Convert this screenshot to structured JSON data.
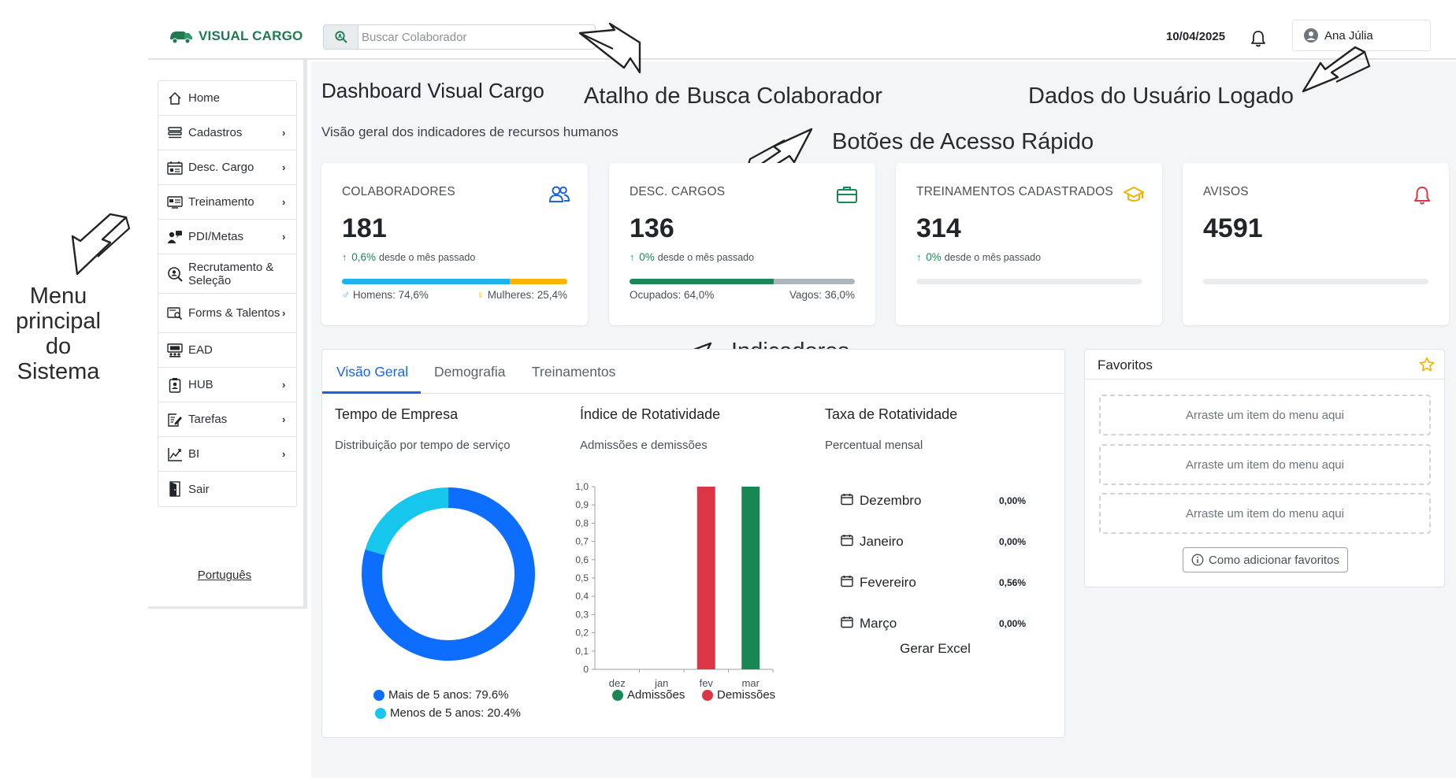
{
  "header": {
    "brand": "VISUAL CARGO",
    "search_placeholder": "Buscar Colaborador",
    "date": "10/04/2025",
    "user_name": "Ana Júlia"
  },
  "sidebar": {
    "items": [
      {
        "label": "Home",
        "icon": "home-icon",
        "has_submenu": false
      },
      {
        "label": "Cadastros",
        "icon": "list-icon",
        "has_submenu": true
      },
      {
        "label": "Desc. Cargo",
        "icon": "calendar-board-icon",
        "has_submenu": true
      },
      {
        "label": "Treinamento",
        "icon": "presentation-icon",
        "has_submenu": true
      },
      {
        "label": "PDI/Metas",
        "icon": "user-chat-icon",
        "has_submenu": true
      },
      {
        "label": "Recrutamento & Seleção",
        "icon": "user-search-icon",
        "has_submenu": false
      },
      {
        "label": "Forms & Talentos",
        "icon": "form-search-icon",
        "has_submenu": true
      },
      {
        "label": "EAD",
        "icon": "classroom-icon",
        "has_submenu": false
      },
      {
        "label": "HUB",
        "icon": "badge-icon",
        "has_submenu": true
      },
      {
        "label": "Tarefas",
        "icon": "task-edit-icon",
        "has_submenu": true
      },
      {
        "label": "BI",
        "icon": "chart-line-icon",
        "has_submenu": true
      },
      {
        "label": "Sair",
        "icon": "door-exit-icon",
        "has_submenu": false
      }
    ],
    "language": "Português"
  },
  "main": {
    "title": "Dashboard Visual Cargo",
    "subtitle": "Visão geral dos indicadores de recursos humanos"
  },
  "annotations": {
    "search": "Atalho de Busca Colaborador",
    "user": "Dados do Usuário Logado",
    "quick": "Botões de Acesso Rápido",
    "menu_line1": "Menu",
    "menu_line2": "principal do",
    "menu_line3": "Sistema",
    "indicators": "Indicadores"
  },
  "cards": [
    {
      "title": "COLABORADORES",
      "value": "181",
      "delta": "0,6%",
      "delta_text": "desde o mês passado",
      "icon": "users-icon",
      "color": "#1e64d6",
      "bar": [
        {
          "share": 0.746,
          "color": "#1eb3ea"
        },
        {
          "share": 0.254,
          "color": "#f7b500"
        }
      ],
      "foot_left": "Homens: 74,6%",
      "foot_right": "Mulheres: 25,4%"
    },
    {
      "title": "DESC. CARGOS",
      "value": "136",
      "delta": "0%",
      "delta_text": "desde o mês passado",
      "icon": "briefcase-icon",
      "color": "#1a8754",
      "bar": [
        {
          "share": 0.64,
          "color": "#1a8754"
        },
        {
          "share": 0.36,
          "color": "#adb5bd"
        }
      ],
      "foot_left": "Ocupados: 64,0%",
      "foot_right": "Vagos: 36,0%"
    },
    {
      "title": "TREINAMENTOS CADASTRADOS",
      "value": "314",
      "delta": "0%",
      "delta_text": "desde o mês passado",
      "icon": "graduation-cap-icon",
      "color": "#f0b400",
      "bar": [],
      "foot_left": "",
      "foot_right": ""
    },
    {
      "title": "AVISOS",
      "value": "4591",
      "delta": "",
      "delta_text": "",
      "icon": "bell-icon",
      "color": "#dc3545",
      "bar": [],
      "foot_left": "",
      "foot_right": ""
    }
  ],
  "indicators": {
    "tabs": [
      "Visão Geral",
      "Demografia",
      "Treinamentos"
    ],
    "active_tab": 0,
    "tempo": {
      "title": "Tempo de Empresa",
      "subtitle": "Distribuição por tempo de serviço"
    },
    "rotatividade": {
      "title": "Índice de Rotatividade",
      "subtitle": "Admissões e demissões"
    },
    "taxa": {
      "title": "Taxa de Rotatividade",
      "subtitle": "Percentual mensal",
      "months": [
        {
          "name": "Dezembro",
          "value": "0,00%"
        },
        {
          "name": "Janeiro",
          "value": "0,00%"
        },
        {
          "name": "Fevereiro",
          "value": "0,56%"
        },
        {
          "name": "Março",
          "value": "0,00%"
        }
      ],
      "excel_label": "Gerar Excel"
    }
  },
  "chart_data": [
    {
      "type": "pie",
      "donut": true,
      "labels": [
        "Mais de 5 anos: 79.6%",
        "Menos de 5 anos: 20.4%"
      ],
      "values": [
        79.6,
        20.4
      ],
      "colors": [
        "#0d6efd",
        "#17c6ec"
      ]
    },
    {
      "type": "bar",
      "categories": [
        "dez",
        "jan",
        "fev",
        "mar"
      ],
      "series": [
        {
          "name": "Admissões",
          "values": [
            0,
            0,
            0,
            1
          ],
          "color": "#198754"
        },
        {
          "name": "Demissões",
          "values": [
            0,
            0,
            1,
            0
          ],
          "color": "#dc3545"
        }
      ],
      "ylim": [
        0,
        1
      ],
      "yticks": [
        "0",
        "0,1",
        "0,2",
        "0,3",
        "0,4",
        "0,5",
        "0,6",
        "0,7",
        "0,8",
        "0,9",
        "1,0"
      ],
      "ytick_values": [
        0,
        0.1,
        0.2,
        0.3,
        0.4,
        0.5,
        0.6,
        0.7,
        0.8,
        0.9,
        1.0
      ],
      "legend": "bottom"
    }
  ],
  "favorites": {
    "title": "Favoritos",
    "drop_text": "Arraste um item do menu aqui",
    "slots": 3,
    "help_label": "Como adicionar favoritos"
  }
}
